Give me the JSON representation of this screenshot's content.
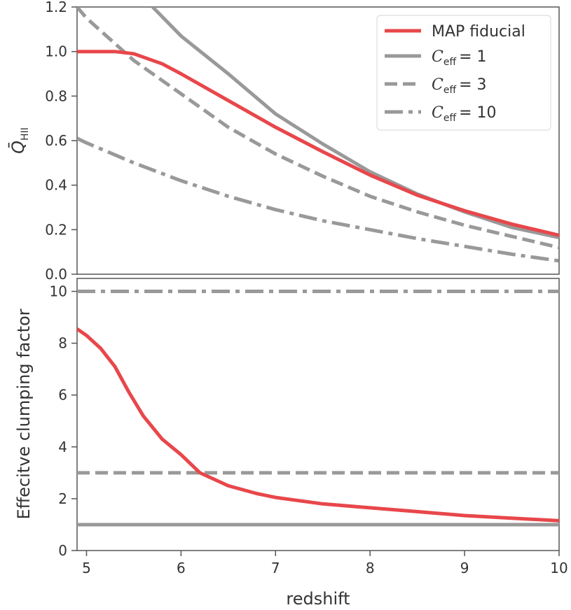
{
  "chart_data": [
    {
      "type": "line",
      "panel": "top",
      "ylabel": "Q̄",
      "ylabel_sub": "HII",
      "xlim": [
        4.9,
        10
      ],
      "ylim": [
        0,
        1.2
      ],
      "yticks": [
        0.0,
        0.2,
        0.4,
        0.6,
        0.8,
        1.0,
        1.2
      ],
      "ytick_labels": [
        "0.0",
        "0.2",
        "0.4",
        "0.6",
        "0.8",
        "1.0",
        "1.2"
      ],
      "legend_position": "top-right",
      "series": [
        {
          "name": "MAP fiducial",
          "legend_label": "MAP fiducial",
          "color": "#e8474b",
          "style": "solid",
          "x": [
            4.9,
            5.0,
            5.2,
            5.3,
            5.5,
            5.8,
            6.0,
            6.5,
            7.0,
            7.5,
            8.0,
            8.5,
            9.0,
            9.5,
            10.0
          ],
          "y": [
            1.0,
            1.0,
            1.0,
            1.0,
            0.99,
            0.945,
            0.9,
            0.78,
            0.66,
            0.55,
            0.445,
            0.355,
            0.285,
            0.225,
            0.175
          ]
        },
        {
          "name": "C_eff = 1",
          "legend_label": "= 1",
          "color": "#999999",
          "style": "solid",
          "x": [
            5.7,
            6.0,
            6.5,
            7.0,
            7.5,
            8.0,
            8.5,
            9.0,
            9.5,
            10.0
          ],
          "y": [
            1.2,
            1.07,
            0.9,
            0.72,
            0.585,
            0.46,
            0.36,
            0.28,
            0.21,
            0.165
          ]
        },
        {
          "name": "C_eff = 3",
          "legend_label": "= 3",
          "color": "#999999",
          "style": "dashed",
          "x": [
            4.9,
            5.0,
            5.5,
            6.0,
            6.5,
            7.0,
            7.5,
            8.0,
            8.5,
            9.0,
            9.5,
            10.0
          ],
          "y": [
            1.2,
            1.15,
            0.96,
            0.81,
            0.66,
            0.54,
            0.44,
            0.35,
            0.28,
            0.22,
            0.17,
            0.12
          ]
        },
        {
          "name": "C_eff = 10",
          "legend_label": "= 10",
          "color": "#999999",
          "style": "dashdot",
          "x": [
            4.9,
            5.0,
            5.5,
            6.0,
            6.5,
            7.0,
            7.5,
            8.0,
            8.5,
            9.0,
            9.5,
            10.0
          ],
          "y": [
            0.61,
            0.59,
            0.5,
            0.42,
            0.35,
            0.29,
            0.24,
            0.2,
            0.16,
            0.125,
            0.09,
            0.06
          ]
        }
      ],
      "legend_symbol": "C",
      "legend_symbol_sub": "eff"
    },
    {
      "type": "line",
      "panel": "bottom",
      "xlabel": "redshift",
      "ylabel": "Effecitve clumping factor",
      "xlim": [
        4.9,
        10
      ],
      "ylim": [
        0,
        10.5
      ],
      "xticks": [
        5,
        6,
        7,
        8,
        9,
        10
      ],
      "xtick_labels": [
        "5",
        "6",
        "7",
        "8",
        "9",
        "10"
      ],
      "yticks": [
        0,
        2,
        4,
        6,
        8,
        10
      ],
      "ytick_labels": [
        "0",
        "2",
        "4",
        "6",
        "8",
        "10"
      ],
      "series": [
        {
          "name": "MAP fiducial",
          "color": "#e8474b",
          "style": "solid",
          "x": [
            4.9,
            5.0,
            5.15,
            5.3,
            5.45,
            5.6,
            5.8,
            6.0,
            6.2,
            6.5,
            6.8,
            7.0,
            7.5,
            8.0,
            8.5,
            9.0,
            9.5,
            10.0
          ],
          "y": [
            8.55,
            8.3,
            7.8,
            7.1,
            6.1,
            5.2,
            4.3,
            3.7,
            3.0,
            2.5,
            2.2,
            2.05,
            1.8,
            1.65,
            1.5,
            1.35,
            1.25,
            1.15
          ]
        },
        {
          "name": "C_eff = 1",
          "color": "#999999",
          "style": "solid",
          "x": [
            4.9,
            10.0
          ],
          "y": [
            1,
            1
          ]
        },
        {
          "name": "C_eff = 3",
          "color": "#999999",
          "style": "dashed",
          "x": [
            4.9,
            10.0
          ],
          "y": [
            3,
            3
          ]
        },
        {
          "name": "C_eff = 10",
          "color": "#999999",
          "style": "dashdot",
          "x": [
            4.9,
            10.0
          ],
          "y": [
            10,
            10
          ]
        }
      ]
    }
  ]
}
